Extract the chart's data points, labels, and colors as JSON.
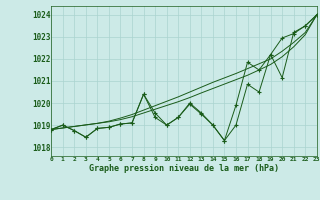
{
  "title": "Graphe pression niveau de la mer (hPa)",
  "background_color": "#cceae7",
  "grid_color": "#aad4d0",
  "line_color": "#1a5c1a",
  "x_labels": [
    "0",
    "1",
    "2",
    "3",
    "4",
    "5",
    "6",
    "7",
    "8",
    "9",
    "10",
    "11",
    "12",
    "13",
    "14",
    "15",
    "16",
    "17",
    "18",
    "19",
    "20",
    "21",
    "22",
    "23"
  ],
  "ylim": [
    1017.6,
    1024.4
  ],
  "xlim": [
    0,
    23
  ],
  "yticks": [
    1018,
    1019,
    1020,
    1021,
    1022,
    1023,
    1024
  ],
  "series1": [
    1018.8,
    1019.0,
    1018.75,
    1018.45,
    1018.85,
    1018.9,
    1019.05,
    1019.1,
    1020.4,
    1019.35,
    1019.0,
    1019.35,
    1020.0,
    1019.55,
    1019.0,
    1018.3,
    1019.0,
    1020.85,
    1020.5,
    1022.2,
    1021.15,
    1023.2,
    1023.5,
    1024.0
  ],
  "series2": [
    1018.8,
    1019.0,
    1018.75,
    1018.45,
    1018.85,
    1018.9,
    1019.05,
    1019.1,
    1020.4,
    1019.55,
    1019.0,
    1019.35,
    1019.95,
    1019.5,
    1019.0,
    1018.3,
    1019.9,
    1021.85,
    1021.5,
    1022.2,
    1022.95,
    1023.15,
    1023.5,
    1024.0
  ],
  "series_line1": [
    1018.8,
    1018.87,
    1018.94,
    1019.01,
    1019.08,
    1019.15,
    1019.25,
    1019.38,
    1019.55,
    1019.72,
    1019.89,
    1020.06,
    1020.25,
    1020.46,
    1020.66,
    1020.86,
    1021.06,
    1021.26,
    1021.5,
    1021.75,
    1022.1,
    1022.55,
    1023.1,
    1024.0
  ],
  "series_line2": [
    1018.8,
    1018.87,
    1018.94,
    1019.01,
    1019.08,
    1019.18,
    1019.32,
    1019.48,
    1019.68,
    1019.88,
    1020.08,
    1020.28,
    1020.5,
    1020.72,
    1020.94,
    1021.14,
    1021.34,
    1021.56,
    1021.78,
    1022.0,
    1022.35,
    1022.75,
    1023.2,
    1024.0
  ]
}
